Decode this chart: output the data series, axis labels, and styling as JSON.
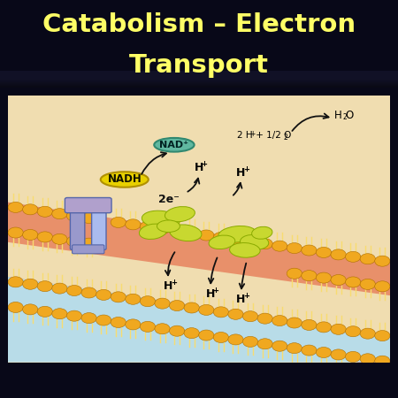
{
  "title_line1": "Catabolism – Electron",
  "title_line2": "Transport",
  "title_color": "#FFFF66",
  "title_bg_top": "#0a1a10",
  "title_bg_bottom": "#0a0a30",
  "title_fontsize": 21,
  "diagram_border": "#cccccc",
  "diagram_bg": "#f0ddb0",
  "membrane_salmon": "#e8906a",
  "membrane_lower_bg": "#b8dce8",
  "phospholipid_head": "#f0a820",
  "phospholipid_tail": "#f8dc70",
  "channel_color1": "#9999cc",
  "channel_color2": "#aabbee",
  "channel_top_color": "#b0a0cc",
  "enzyme_color": "#c8d830",
  "enzyme_edge": "#8aaa00",
  "nadh_bg": "#e8d000",
  "nadh_edge": "#b09000",
  "nad_bg": "#60b8a0",
  "nad_edge": "#308870",
  "arrow_color": "#111111",
  "text_color": "#111111",
  "nadh_text": "NADH",
  "nad_text": "NAD⁺",
  "electron_text": "2e⁻",
  "bottom_bar": "#080818",
  "white_border": "#ffffff"
}
